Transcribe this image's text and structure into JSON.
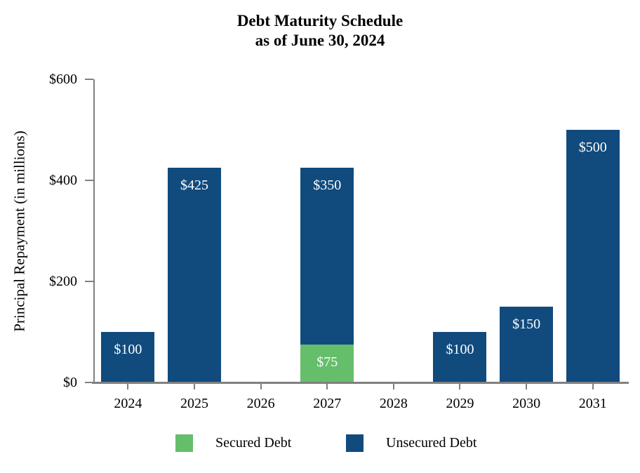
{
  "title": {
    "line1": "Debt Maturity Schedule",
    "line2": "as of June 30, 2024"
  },
  "chart_data": {
    "type": "bar",
    "stacked": true,
    "title": "Debt Maturity Schedule as of June 30, 2024",
    "xlabel": "",
    "ylabel": "Principal Repayment (in millions)",
    "categories": [
      "2024",
      "2025",
      "2026",
      "2027",
      "2028",
      "2029",
      "2030",
      "2031"
    ],
    "series": [
      {
        "name": "Secured Debt",
        "color": "#65BE6A",
        "values": [
          0,
          0,
          0,
          75,
          0,
          0,
          0,
          0
        ],
        "labels": [
          "",
          "",
          "",
          "$75",
          "",
          "",
          "",
          ""
        ]
      },
      {
        "name": "Unsecured Debt",
        "color": "#114B7E",
        "values": [
          100,
          425,
          0,
          350,
          0,
          100,
          150,
          500
        ],
        "labels": [
          "$100",
          "$425",
          "",
          "$350",
          "",
          "$100",
          "$150",
          "$500"
        ]
      }
    ],
    "ylim": [
      0,
      600
    ],
    "yticks": [
      0,
      200,
      400,
      600
    ],
    "ytick_labels": [
      "$0",
      "$200",
      "$400",
      "$600"
    ],
    "grid": false,
    "legend_position": "bottom"
  },
  "legend": {
    "items": [
      {
        "label": "Secured Debt",
        "color": "#65BE6A"
      },
      {
        "label": "Unsecured Debt",
        "color": "#114B7E"
      }
    ]
  },
  "colors": {
    "axis": "#808080",
    "bar_label_text": "#ffffff",
    "title_text": "#000000"
  }
}
